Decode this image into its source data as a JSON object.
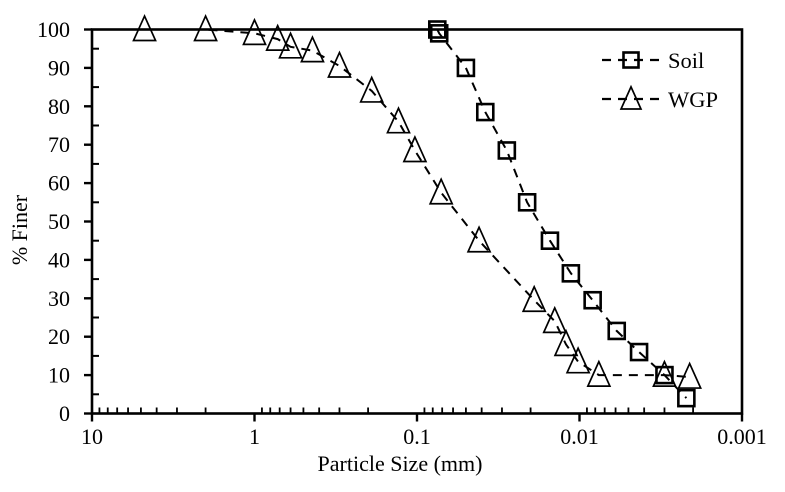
{
  "chart_data": {
    "type": "line",
    "title": "",
    "xlabel": "Particle Size (mm)",
    "ylabel": "% Finer",
    "x_scale": "log-reversed",
    "xlim": [
      10,
      0.001
    ],
    "ylim": [
      0,
      100
    ],
    "grid": false,
    "legend_position": "top-right",
    "line_style": "dashed",
    "colors": {
      "stroke": "#000000",
      "background": "#ffffff"
    },
    "x_major_ticks": [
      {
        "value": 10,
        "label": "10"
      },
      {
        "value": 1,
        "label": "1"
      },
      {
        "value": 0.1,
        "label": "0.1"
      },
      {
        "value": 0.01,
        "label": "0.01"
      },
      {
        "value": 0.001,
        "label": "0.001"
      }
    ],
    "y_major_step": 10,
    "y_minor_step": 5,
    "series": [
      {
        "name": "Soil",
        "marker": "square",
        "points": [
          [
            0.075,
            100
          ],
          [
            0.073,
            99
          ],
          [
            0.05,
            90
          ],
          [
            0.038,
            78.5
          ],
          [
            0.028,
            68.5
          ],
          [
            0.021,
            55
          ],
          [
            0.0152,
            45
          ],
          [
            0.0113,
            36.5
          ],
          [
            0.0083,
            29.5
          ],
          [
            0.0059,
            21.5
          ],
          [
            0.0043,
            16
          ],
          [
            0.003,
            10
          ],
          [
            0.0022,
            4
          ]
        ]
      },
      {
        "name": "WGP",
        "marker": "triangle",
        "points": [
          [
            4.75,
            100
          ],
          [
            2.0,
            100
          ],
          [
            1.0,
            99
          ],
          [
            0.72,
            97.5
          ],
          [
            0.6,
            95.5
          ],
          [
            0.44,
            94.5
          ],
          [
            0.3,
            90.5
          ],
          [
            0.19,
            84
          ],
          [
            0.13,
            76
          ],
          [
            0.103,
            68.5
          ],
          [
            0.071,
            57.5
          ],
          [
            0.0415,
            45
          ],
          [
            0.019,
            29.5
          ],
          [
            0.0142,
            24
          ],
          [
            0.0121,
            18
          ],
          [
            0.0102,
            13.5
          ],
          [
            0.0076,
            10
          ],
          [
            0.003,
            10
          ],
          [
            0.0021,
            9.5
          ]
        ]
      }
    ]
  }
}
